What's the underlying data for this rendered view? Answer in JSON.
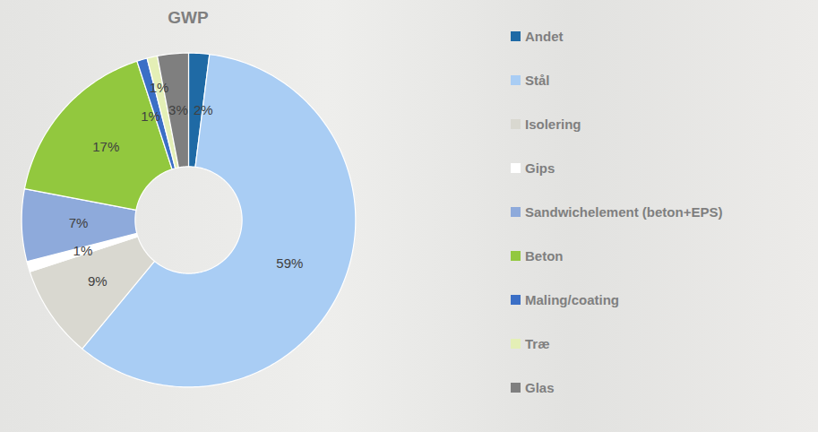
{
  "chart_data": {
    "type": "donut",
    "title": "GWP",
    "categories": [
      "Andet",
      "Stål",
      "Isolering",
      "Gips",
      "Sandwichelement (beton+EPS)",
      "Beton",
      "Maling/coating",
      "Træ",
      "Glas"
    ],
    "values": [
      2,
      59,
      9,
      1,
      7,
      17,
      1,
      1,
      3
    ],
    "value_labels": [
      "2%",
      "59%",
      "9%",
      "1%",
      "7%",
      "17%",
      "1%",
      "1%",
      "3%"
    ],
    "colors": [
      "#1f6aa5",
      "#a9cdf4",
      "#d9d8d0",
      "#ffffff",
      "#8eaadb",
      "#92c83e",
      "#3b6fc6",
      "#e4efb6",
      "#7f7f7f"
    ],
    "data_labels": true,
    "legend": "right"
  }
}
